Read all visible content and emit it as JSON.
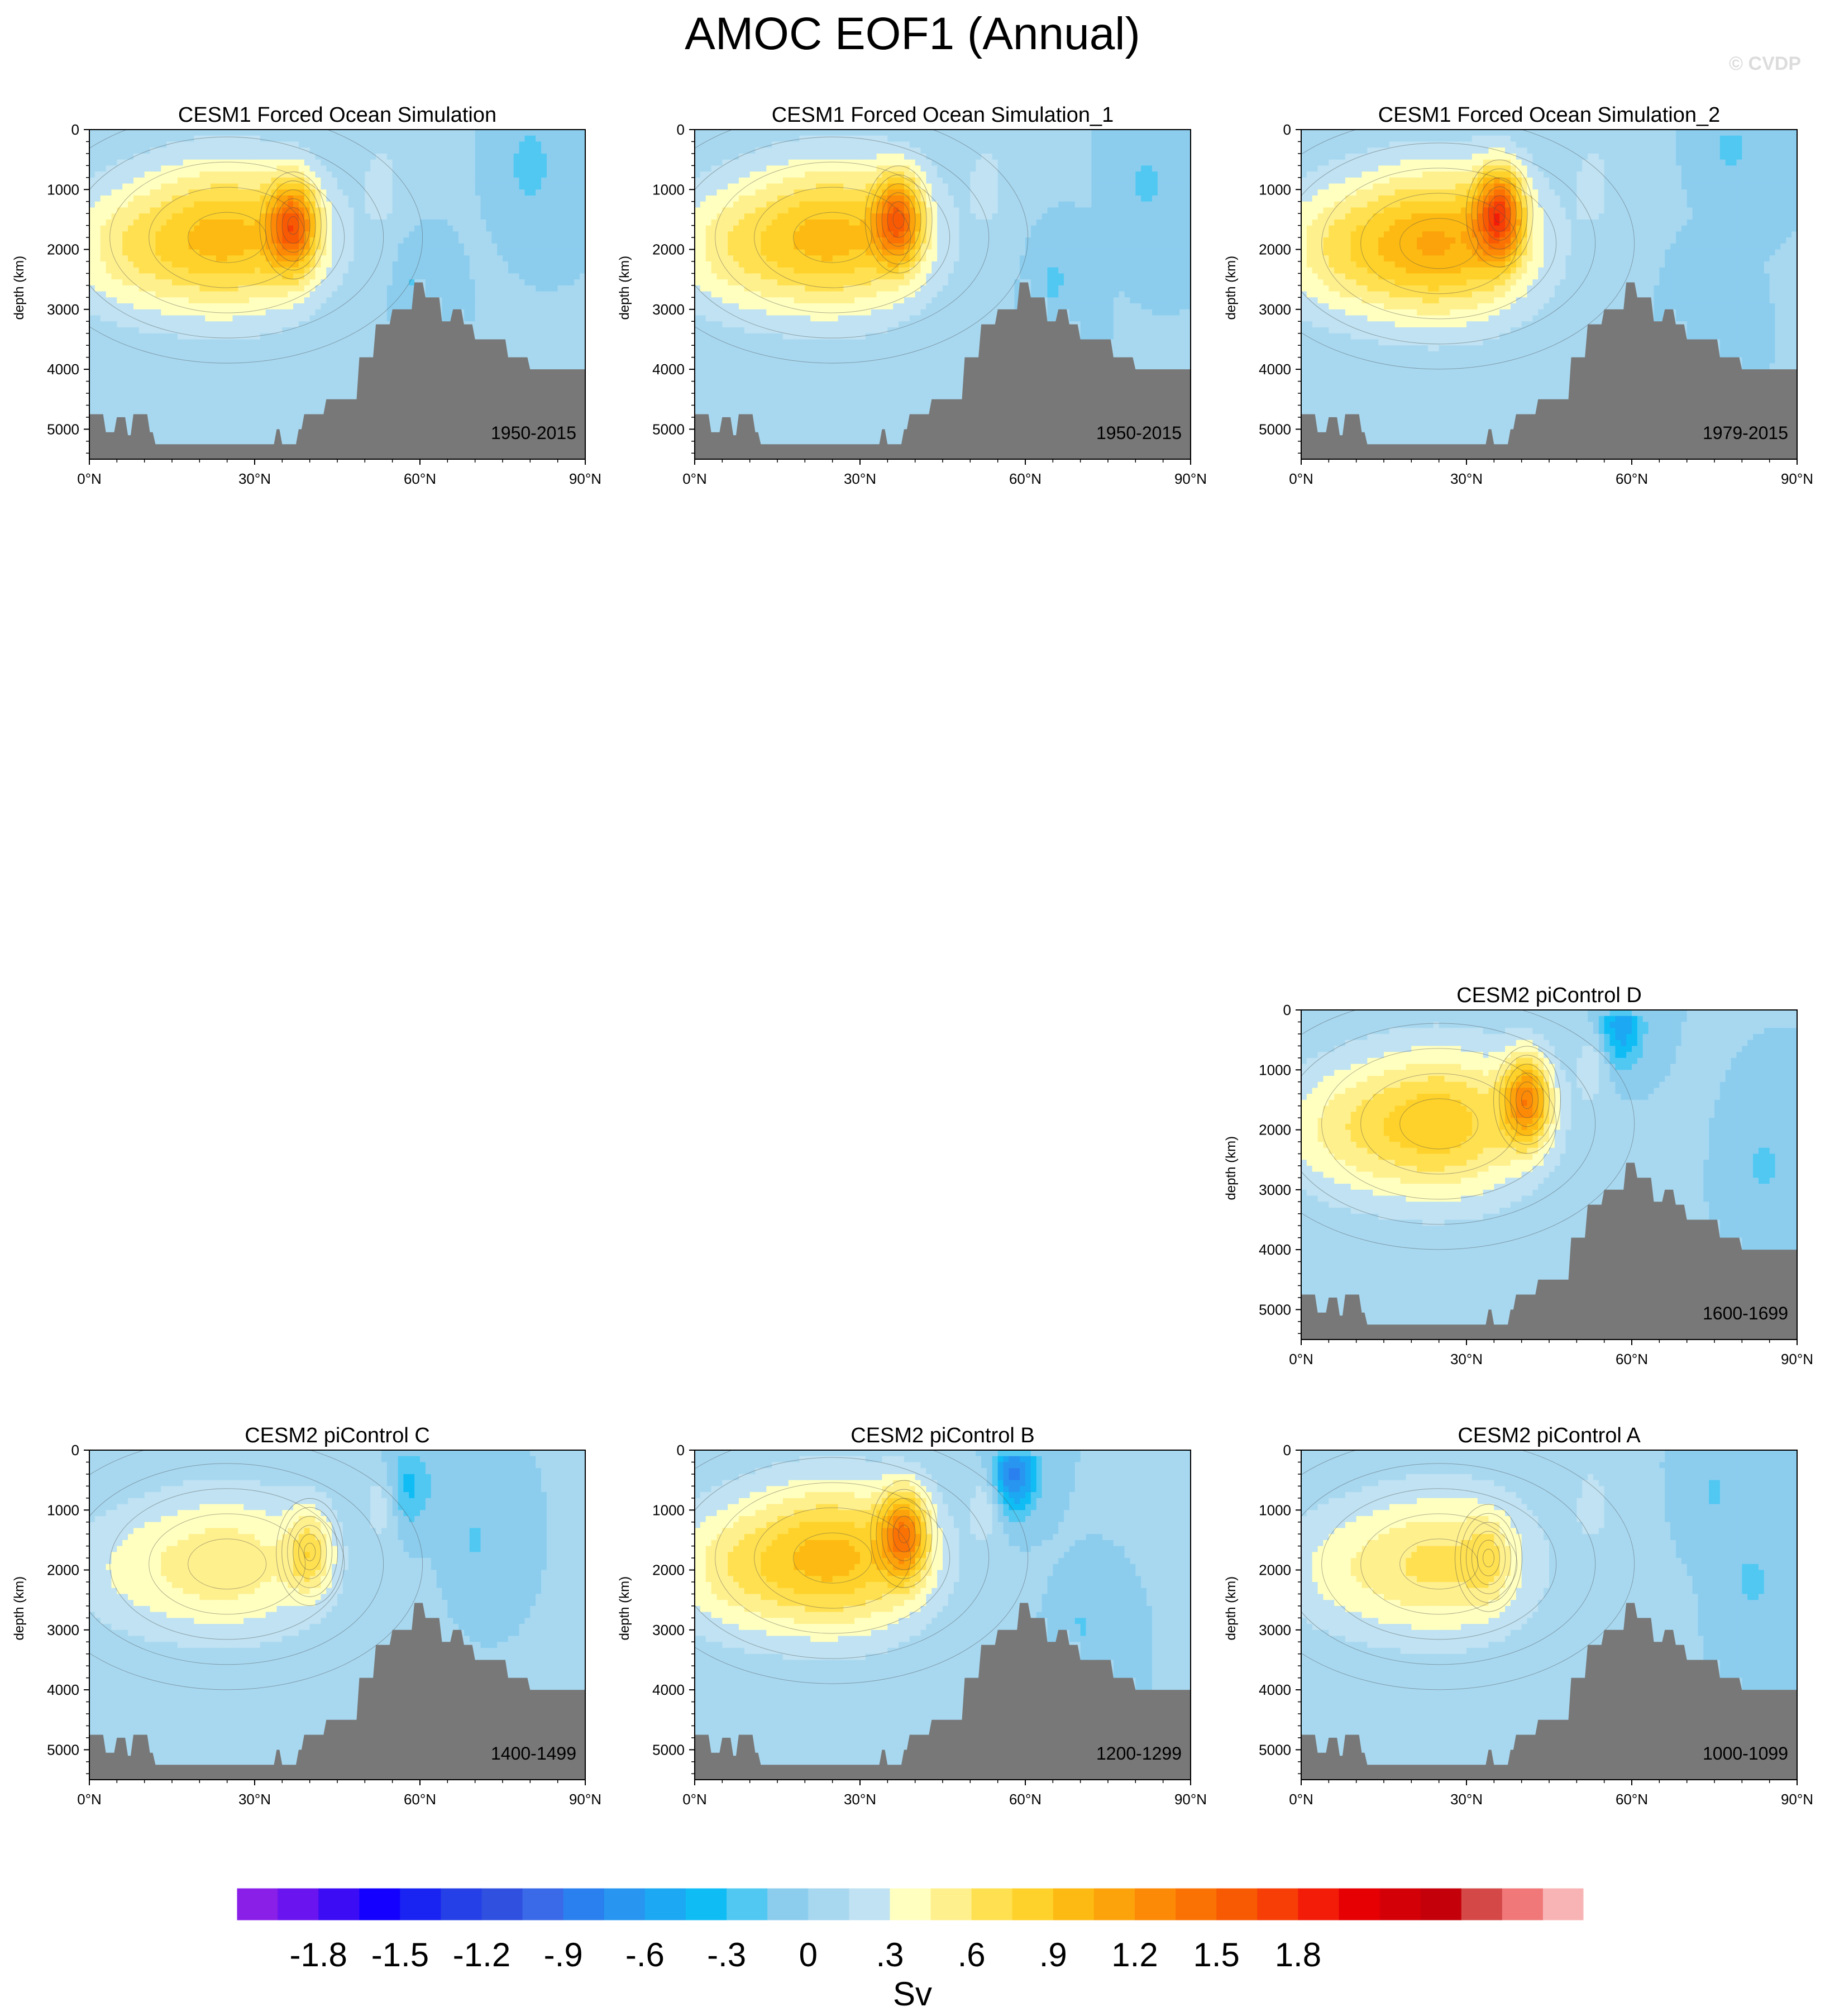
{
  "title": "AMOC EOF1 (Annual)",
  "copyright": "© CVDP",
  "chart_data": [
    {
      "type": "heatmap",
      "title": "CESM1 Forced Ocean Simulation",
      "period": "1950-2015",
      "ylabel": "depth (km)",
      "x_ticks": [
        "0°N",
        "30°N",
        "60°N",
        "90°N"
      ],
      "y_ticks": [
        "0",
        "1000",
        "2000",
        "3000",
        "4000",
        "5000"
      ],
      "xlim": [
        0,
        90
      ],
      "ylim": [
        5500,
        0
      ],
      "cell_max": {
        "lat": 37,
        "depth": 1600,
        "value": 1.65
      },
      "lobe_peak": 0.95,
      "lobe_center": {
        "lat": 25,
        "depth": 1800
      },
      "neg_patches": [
        {
          "lat": 60,
          "depth": 2600,
          "value": -0.15
        },
        {
          "lat": 80,
          "depth": 600,
          "value": -0.2
        }
      ]
    },
    {
      "type": "heatmap",
      "title": "CESM1 Forced Ocean Simulation_1",
      "period": "1950-2015",
      "ylabel": "depth (km)",
      "x_ticks": [
        "0°N",
        "30°N",
        "60°N",
        "90°N"
      ],
      "y_ticks": [
        "0",
        "1000",
        "2000",
        "3000",
        "4000",
        "5000"
      ],
      "xlim": [
        0,
        90
      ],
      "ylim": [
        5500,
        0
      ],
      "cell_max": {
        "lat": 37,
        "depth": 1500,
        "value": 1.6
      },
      "lobe_peak": 0.95,
      "lobe_center": {
        "lat": 25,
        "depth": 1800
      },
      "neg_patches": [
        {
          "lat": 65,
          "depth": 2600,
          "value": -0.15
        },
        {
          "lat": 82,
          "depth": 900,
          "value": -0.15
        }
      ]
    },
    {
      "type": "heatmap",
      "title": "CESM1 Forced Ocean Simulation_2",
      "period": "1979-2015",
      "ylabel": "depth (km)",
      "x_ticks": [
        "0°N",
        "30°N",
        "60°N",
        "90°N"
      ],
      "y_ticks": [
        "0",
        "1000",
        "2000",
        "3000",
        "4000",
        "5000"
      ],
      "xlim": [
        0,
        90
      ],
      "ylim": [
        5500,
        0
      ],
      "cell_max": {
        "lat": 36,
        "depth": 1400,
        "value": 1.8
      },
      "lobe_peak": 1.05,
      "lobe_center": {
        "lat": 25,
        "depth": 1900
      },
      "neg_patches": [
        {
          "lat": 72,
          "depth": 3000,
          "value": -0.1
        },
        {
          "lat": 78,
          "depth": 300,
          "value": -0.15
        }
      ]
    },
    {
      "type": "heatmap",
      "title": "CESM2 piControl D",
      "period": "1600-1699",
      "ylabel": "depth (km)",
      "x_ticks": [
        "0°N",
        "30°N",
        "60°N",
        "90°N"
      ],
      "y_ticks": [
        "0",
        "1000",
        "2000",
        "3000",
        "4000",
        "5000"
      ],
      "xlim": [
        0,
        90
      ],
      "ylim": [
        5500,
        0
      ],
      "cell_max": {
        "lat": 41,
        "depth": 1500,
        "value": 1.35
      },
      "lobe_peak": 0.85,
      "lobe_center": {
        "lat": 25,
        "depth": 1900
      },
      "neg_patches": [
        {
          "lat": 58,
          "depth": 300,
          "value": -0.5
        },
        {
          "lat": 84,
          "depth": 2600,
          "value": -0.15
        }
      ]
    },
    {
      "type": "heatmap",
      "title": "CESM2 piControl C",
      "period": "1400-1499",
      "ylabel": "depth (km)",
      "x_ticks": [
        "0°N",
        "30°N",
        "60°N",
        "90°N"
      ],
      "y_ticks": [
        "0",
        "1000",
        "2000",
        "3000",
        "4000",
        "5000"
      ],
      "xlim": [
        0,
        90
      ],
      "ylim": [
        5500,
        0
      ],
      "cell_max": {
        "lat": 40,
        "depth": 1700,
        "value": 0.75
      },
      "lobe_peak": 0.55,
      "lobe_center": {
        "lat": 25,
        "depth": 1900
      },
      "neg_patches": [
        {
          "lat": 58,
          "depth": 600,
          "value": -0.3
        },
        {
          "lat": 70,
          "depth": 1500,
          "value": -0.12
        }
      ]
    },
    {
      "type": "heatmap",
      "title": "CESM2 piControl B",
      "period": "1200-1299",
      "ylabel": "depth (km)",
      "x_ticks": [
        "0°N",
        "30°N",
        "60°N",
        "90°N"
      ],
      "y_ticks": [
        "0",
        "1000",
        "2000",
        "3000",
        "4000",
        "5000"
      ],
      "xlim": [
        0,
        90
      ],
      "ylim": [
        5500,
        0
      ],
      "cell_max": {
        "lat": 38,
        "depth": 1400,
        "value": 1.45
      },
      "lobe_peak": 0.95,
      "lobe_center": {
        "lat": 25,
        "depth": 1800
      },
      "neg_patches": [
        {
          "lat": 58,
          "depth": 400,
          "value": -0.75
        },
        {
          "lat": 70,
          "depth": 3000,
          "value": -0.12
        }
      ]
    },
    {
      "type": "heatmap",
      "title": "CESM2 piControl A",
      "period": "1000-1099",
      "ylabel": "depth (km)",
      "x_ticks": [
        "0°N",
        "30°N",
        "60°N",
        "90°N"
      ],
      "y_ticks": [
        "0",
        "1000",
        "2000",
        "3000",
        "4000",
        "5000"
      ],
      "xlim": [
        0,
        90
      ],
      "ylim": [
        5500,
        0
      ],
      "cell_max": {
        "lat": 34,
        "depth": 1800,
        "value": 0.72
      },
      "lobe_peak": 0.62,
      "lobe_center": {
        "lat": 25,
        "depth": 1900
      },
      "neg_patches": [
        {
          "lat": 82,
          "depth": 2200,
          "value": -0.15
        },
        {
          "lat": 75,
          "depth": 700,
          "value": -0.12
        }
      ]
    }
  ],
  "colorbar": {
    "units": "Sv",
    "labels": [
      "-1.8",
      "-1.5",
      "-1.2",
      "-.9",
      "-.6",
      "-.3",
      "0",
      ".3",
      ".6",
      ".9",
      "1.2",
      "1.5",
      "1.8"
    ],
    "levels": [
      -1.95,
      -1.8,
      -1.65,
      -1.5,
      -1.35,
      -1.2,
      -1.05,
      -0.9,
      -0.75,
      -0.6,
      -0.45,
      -0.3,
      -0.15,
      0,
      0.15,
      0.3,
      0.45,
      0.6,
      0.75,
      0.9,
      1.05,
      1.2,
      1.35,
      1.5,
      1.65,
      1.8,
      1.95
    ],
    "colors": [
      "#8a1fe8",
      "#6a14f0",
      "#3c0cf5",
      "#1400ff",
      "#1a24f2",
      "#2440e6",
      "#3050e0",
      "#3a6ae8",
      "#2a80ee",
      "#2896f0",
      "#1ca8f2",
      "#10bcf4",
      "#50c8f2",
      "#8ccdee",
      "#a8d8f0",
      "#c0e2f2",
      "#ffffc0",
      "#fff08e",
      "#ffe050",
      "#fed22a",
      "#fdba12",
      "#fca20a",
      "#fc8a06",
      "#fa7204",
      "#f85a04",
      "#f63e06",
      "#f21c08",
      "#e60004",
      "#d40008",
      "#c4000a",
      "#d44848",
      "#f07878",
      "#f8b4b4"
    ]
  },
  "style": {
    "topography": "#787878",
    "contour_line": "#4d4d4d"
  }
}
